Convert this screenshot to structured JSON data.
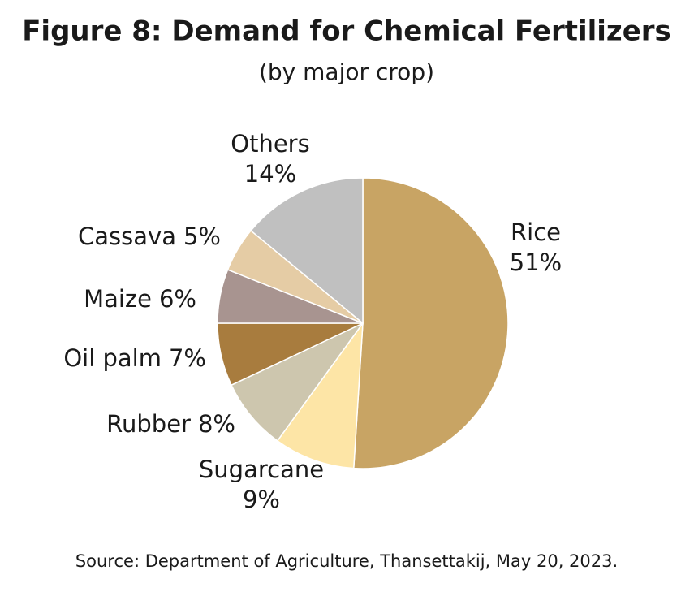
{
  "chart_data": {
    "type": "pie",
    "title": "Figure 8: Demand for Chemical Fertilizers",
    "subtitle": "(by major crop)",
    "categories": [
      "Rice",
      "Sugarcane",
      "Rubber",
      "Oil palm",
      "Maize",
      "Cassava",
      "Others"
    ],
    "values": [
      51,
      9,
      8,
      7,
      6,
      5,
      14
    ],
    "value_labels": [
      "51%",
      "9%",
      "8%",
      "7%",
      "6%",
      "5%",
      "14%"
    ],
    "colors": [
      "#c8a464",
      "#fde5a6",
      "#cdc6ae",
      "#a87c3e",
      "#a89490",
      "#e5cca5",
      "#c0c0c0"
    ],
    "source": "Source: Department of Agriculture, Thansettakij, May 20, 2023."
  }
}
